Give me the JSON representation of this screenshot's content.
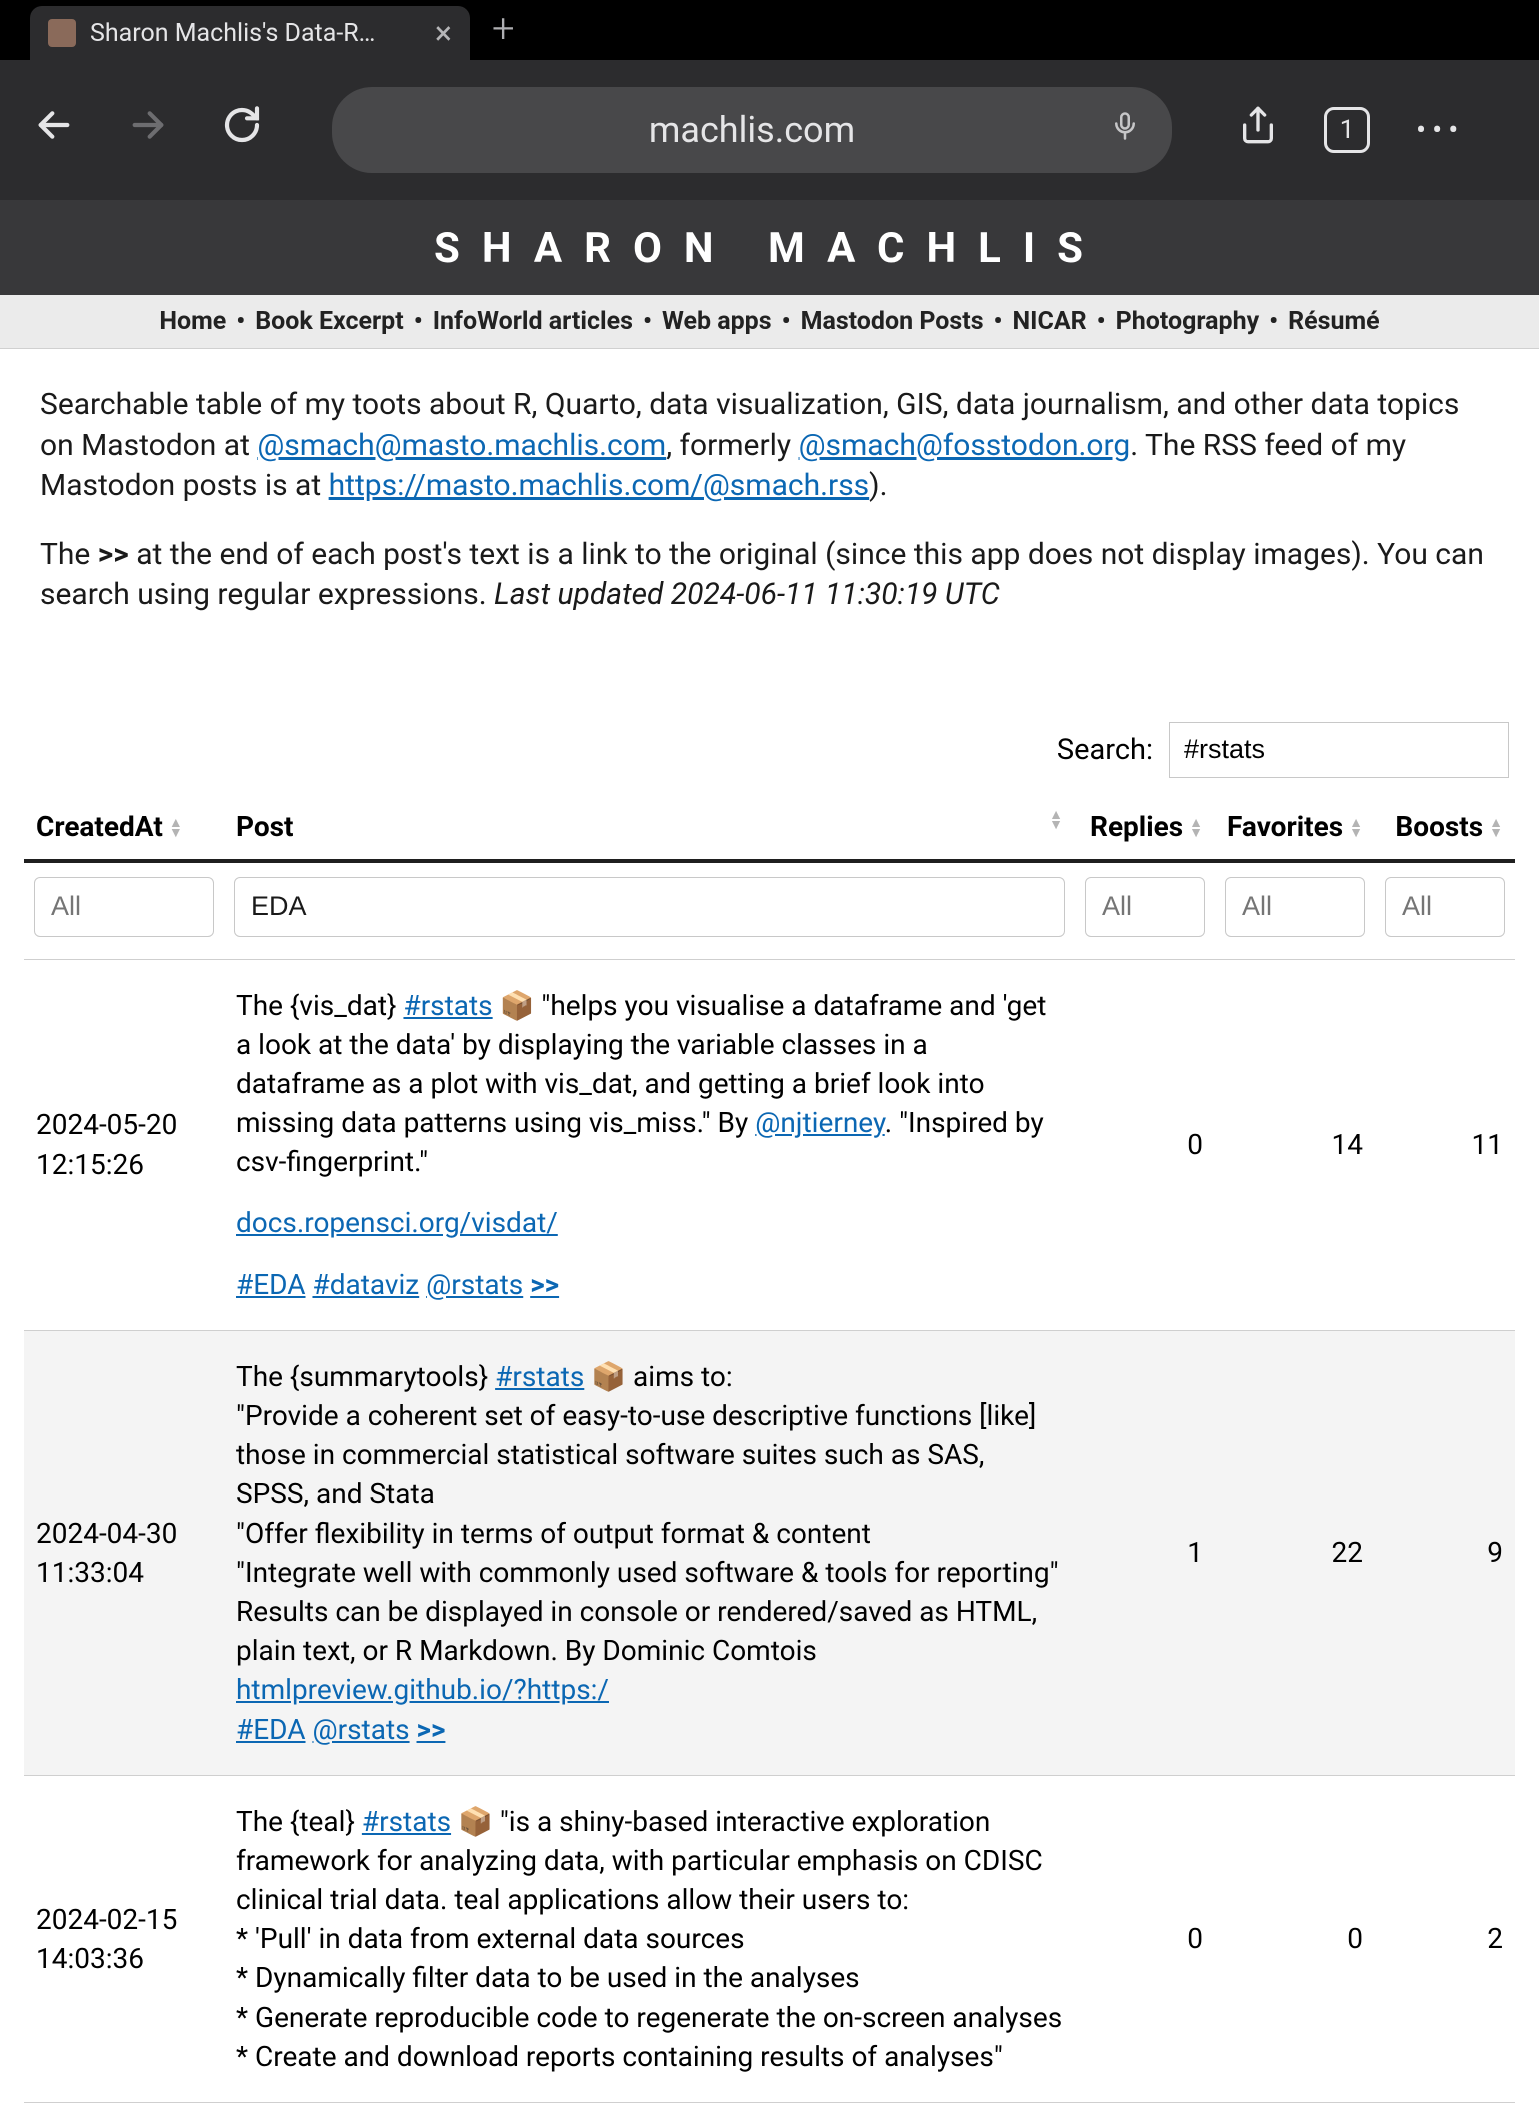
{
  "browser": {
    "tab_title": "Sharon Machlis's Data-R…",
    "url_display": "machlis.com",
    "tab_count": "1"
  },
  "site": {
    "title": "SHARON MACHLIS",
    "nav": [
      "Home",
      "Book Excerpt",
      "InfoWorld articles",
      "Web apps",
      "Mastodon Posts",
      "NICAR",
      "Photography",
      "Résumé"
    ]
  },
  "intro": {
    "p1_a": "Searchable table of my toots about R, Quarto, data visualization, GIS, data journalism, and other data topics on Mastodon at ",
    "link1": "@smach@masto.machlis.com",
    "p1_b": ", formerly ",
    "link2": "@smach@fosstodon.org",
    "p1_c": ". The RSS feed of my Mastodon posts is at ",
    "link3": "https://masto.machlis.com/@smach.rss",
    "p1_d": ").",
    "p2_a": "The ",
    "p2_bold": ">>",
    "p2_b": " at the end of each post's text is a link to the original (since this app does not display images). You can search using regular expressions. ",
    "p2_em": "Last updated 2024-06-11 11:30:19 UTC"
  },
  "table": {
    "search_label": "Search:",
    "search_value": "#rstats",
    "columns": {
      "created": "CreatedAt",
      "post": "Post",
      "replies": "Replies",
      "favorites": "Favorites",
      "boosts": "Boosts"
    },
    "filter_placeholder": "All",
    "filter_post_value": "EDA",
    "rows": [
      {
        "created": "2024-05-20 12:15:26",
        "post_html": "<div class='para'>The {vis_dat} <a href='#'>#rstats</a> 📦 \"helps you visualise a dataframe and 'get a look at the data' by displaying the variable classes in a dataframe as a plot with vis_dat, and getting a brief look into missing data patterns using vis_miss.\" By <a href='#'>@njtierney</a>. \"Inspired by csv-fingerprint.\"</div><div class='para'><a href='#'>docs.ropensci.org/visdat/</a></div><div class='para'><a href='#'>#EDA</a> <a href='#'>#dataviz</a> <a href='#'>@rstats</a> <a href='#'><b>&gt;&gt;</b></a></div>",
        "replies": "0",
        "favorites": "14",
        "boosts": "11"
      },
      {
        "created": "2024-04-30 11:33:04",
        "post_html": "<div class='para'>The {summarytools} <a href='#'>#rstats</a> 📦 aims to:<br>\"Provide a coherent set of easy-to-use descriptive functions [like] those in commercial statistical software suites such as SAS, SPSS, and Stata<br>\"Offer flexibility in terms of output format &amp; content<br>\"Integrate well with commonly used software &amp; tools for reporting\"<br>Results can be displayed in console or rendered/saved as HTML, plain text, or R Markdown. By Dominic Comtois<br><a href='#'>htmlpreview.github.io/?https:/</a><br><a href='#'>#EDA</a> <a href='#'>@rstats</a> <a href='#'><b>&gt;&gt;</b></a></div>",
        "replies": "1",
        "favorites": "22",
        "boosts": "9"
      },
      {
        "created": "2024-02-15 14:03:36",
        "post_html": "<div class='para'>The {teal} <a href='#'>#rstats</a> 📦 \"is a shiny-based interactive exploration framework for analyzing data, with particular emphasis on CDISC clinical trial data. teal applications allow their users to:<br>* 'Pull' in data from external data sources<br>* Dynamically filter data to be used in the analyses<br>* Generate reproducible code to regenerate the on-screen analyses<br>* Create and download reports containing results of analyses\"</div>",
        "replies": "0",
        "favorites": "0",
        "boosts": "2"
      }
    ]
  }
}
